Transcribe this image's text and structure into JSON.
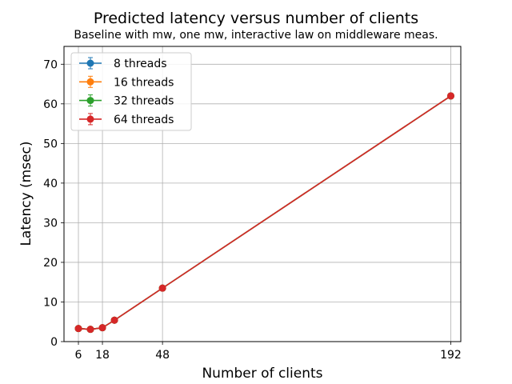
{
  "chart_data": {
    "type": "line",
    "title": "Predicted latency versus number of clients",
    "subtitle": "Baseline with mw, one mw, interactive law on middleware meas.",
    "xlabel": "Number of clients",
    "ylabel": "Latency (msec)",
    "xlim": [
      -1.2,
      197
    ],
    "ylim": [
      0,
      74.5
    ],
    "xticks": [
      6,
      18,
      48,
      192
    ],
    "yticks": [
      0,
      10,
      20,
      30,
      40,
      50,
      60,
      70
    ],
    "grid": true,
    "legend_position": "top-left",
    "x": [
      6,
      12,
      18,
      24,
      48,
      192
    ],
    "series": [
      {
        "name": "8 threads",
        "color": "#1f77b4",
        "values": [
          3.3,
          3.1,
          3.5,
          5.4,
          13.5,
          62.0
        ]
      },
      {
        "name": "16 threads",
        "color": "#ff7f0e",
        "values": [
          3.3,
          3.1,
          3.5,
          5.4,
          13.5,
          62.0
        ]
      },
      {
        "name": "32 threads",
        "color": "#2ca02c",
        "values": [
          3.3,
          3.1,
          3.5,
          5.4,
          13.5,
          62.0
        ]
      },
      {
        "name": "64 threads",
        "color": "#d62728",
        "values": [
          3.3,
          3.1,
          3.5,
          5.4,
          13.5,
          62.0
        ]
      }
    ]
  }
}
